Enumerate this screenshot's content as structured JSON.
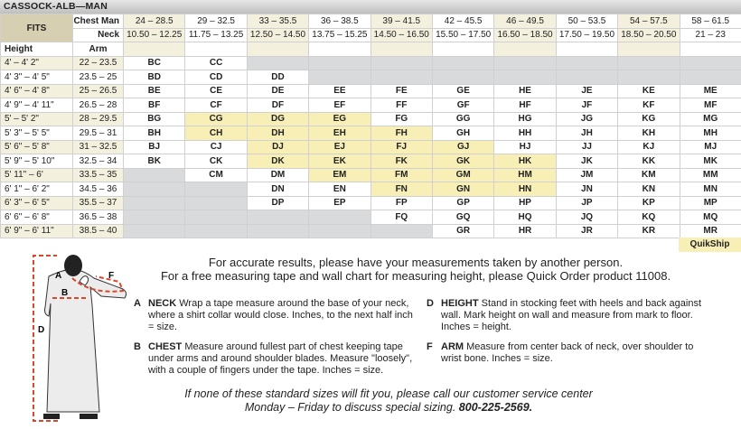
{
  "title": "CASSOCK-ALB—MAN",
  "header": {
    "fits": "FITS",
    "chest_label": "Chest Man",
    "neck_label": "Neck",
    "height_label": "Height",
    "arm_label": "Arm",
    "chest": [
      "24 – 28.5",
      "29 – 32.5",
      "33 – 35.5",
      "36 – 38.5",
      "39 – 41.5",
      "42 – 45.5",
      "46 – 49.5",
      "50 – 53.5",
      "54 – 57.5",
      "58 – 61.5"
    ],
    "neck": [
      "10.50 – 12.25",
      "11.75 – 13.25",
      "12.50 – 14.50",
      "13.75 – 15.25",
      "14.50 – 16.50",
      "15.50 – 17.50",
      "16.50 – 18.50",
      "17.50 – 19.50",
      "18.50 – 20.50",
      "21 – 23"
    ]
  },
  "rows": [
    {
      "height": "4' – 4' 2\"",
      "arm": "22 – 23.5",
      "sizes": [
        "BC",
        "CC",
        "",
        "",
        "",
        "",
        "",
        "",
        "",
        ""
      ]
    },
    {
      "height": "4' 3\" – 4' 5\"",
      "arm": "23.5 – 25",
      "sizes": [
        "BD",
        "CD",
        "DD",
        "",
        "",
        "",
        "",
        "",
        "",
        ""
      ]
    },
    {
      "height": "4' 6\" – 4' 8\"",
      "arm": "25 – 26.5",
      "sizes": [
        "BE",
        "CE",
        "DE",
        "EE",
        "FE",
        "GE",
        "HE",
        "JE",
        "KE",
        "ME"
      ]
    },
    {
      "height": "4' 9\" – 4' 11\"",
      "arm": "26.5 – 28",
      "sizes": [
        "BF",
        "CF",
        "DF",
        "EF",
        "FF",
        "GF",
        "HF",
        "JF",
        "KF",
        "MF"
      ]
    },
    {
      "height": "5' – 5' 2\"",
      "arm": "28 – 29.5",
      "sizes": [
        "BG",
        "CG",
        "DG",
        "EG",
        "FG",
        "GG",
        "HG",
        "JG",
        "KG",
        "MG"
      ]
    },
    {
      "height": "5' 3\" – 5' 5\"",
      "arm": "29.5 – 31",
      "sizes": [
        "BH",
        "CH",
        "DH",
        "EH",
        "FH",
        "GH",
        "HH",
        "JH",
        "KH",
        "MH"
      ]
    },
    {
      "height": "5' 6\" – 5' 8\"",
      "arm": "31 – 32.5",
      "sizes": [
        "BJ",
        "CJ",
        "DJ",
        "EJ",
        "FJ",
        "GJ",
        "HJ",
        "JJ",
        "KJ",
        "MJ"
      ]
    },
    {
      "height": "5' 9\" – 5' 10\"",
      "arm": "32.5 – 34",
      "sizes": [
        "BK",
        "CK",
        "DK",
        "EK",
        "FK",
        "GK",
        "HK",
        "JK",
        "KK",
        "MK"
      ]
    },
    {
      "height": "5' 11\" – 6'",
      "arm": "33.5 – 35",
      "sizes": [
        "",
        "CM",
        "DM",
        "EM",
        "FM",
        "GM",
        "HM",
        "JM",
        "KM",
        "MM"
      ]
    },
    {
      "height": "6' 1\" – 6' 2\"",
      "arm": "34.5 – 36",
      "sizes": [
        "",
        "",
        "DN",
        "EN",
        "FN",
        "GN",
        "HN",
        "JN",
        "KN",
        "MN"
      ]
    },
    {
      "height": "6' 3\" – 6' 5\"",
      "arm": "35.5 – 37",
      "sizes": [
        "",
        "",
        "DP",
        "EP",
        "FP",
        "GP",
        "HP",
        "JP",
        "KP",
        "MP"
      ]
    },
    {
      "height": "6' 6\" – 6' 8\"",
      "arm": "36.5 – 38",
      "sizes": [
        "",
        "",
        "",
        "",
        "FQ",
        "GQ",
        "HQ",
        "JQ",
        "KQ",
        "MQ"
      ]
    },
    {
      "height": "6' 9\" – 6' 11\"",
      "arm": "38.5 – 40",
      "sizes": [
        "",
        "",
        "",
        "",
        "",
        "GR",
        "HR",
        "JR",
        "KR",
        "MR"
      ]
    }
  ],
  "quikship_sizes": [
    "CG",
    "DG",
    "EG",
    "CH",
    "DH",
    "EH",
    "FH",
    "DJ",
    "EJ",
    "FJ",
    "GJ",
    "DK",
    "EK",
    "FK",
    "GK",
    "HK",
    "EM",
    "FM",
    "GM",
    "HM",
    "FN",
    "GN",
    "HN"
  ],
  "quikship_label": "QuikShip",
  "colors": {
    "quikship": "#f8efb6",
    "unavailable": "#d9dadc",
    "beige": "#f4f0de",
    "fits": "#d7cfb1",
    "measure_line": "#d9472b"
  },
  "intro": [
    "For accurate results, please have your measurements taken by another person.",
    "For a free measuring tape and wall chart for measuring height, please Quick Order product 11008."
  ],
  "figure_labels": {
    "a": "A",
    "b": "B",
    "d": "D",
    "f": "F"
  },
  "instructions": [
    {
      "key": "A",
      "title": "NECK",
      "text": "Wrap a tape measure around the base of your neck, where a shirt collar would close. Inches, to the next half inch = size."
    },
    {
      "key": "B",
      "title": "CHEST",
      "text": "Measure around fullest part of chest keeping tape under arms and around shoulder blades. Measure \"loosely\", with a couple of fingers under the tape. Inches = size."
    },
    {
      "key": "D",
      "title": "HEIGHT",
      "text": "Stand in stocking feet with heels and back against wall. Mark height on wall and measure from mark to floor. Inches = height."
    },
    {
      "key": "F",
      "title": "ARM",
      "text": "Measure from center back of neck, over shoulder to wrist bone. Inches = size."
    }
  ],
  "footer": [
    "If none of these standard sizes will fit you, please call our customer service center",
    "Monday – Friday to discuss special sizing. ",
    "800-225-2569."
  ]
}
